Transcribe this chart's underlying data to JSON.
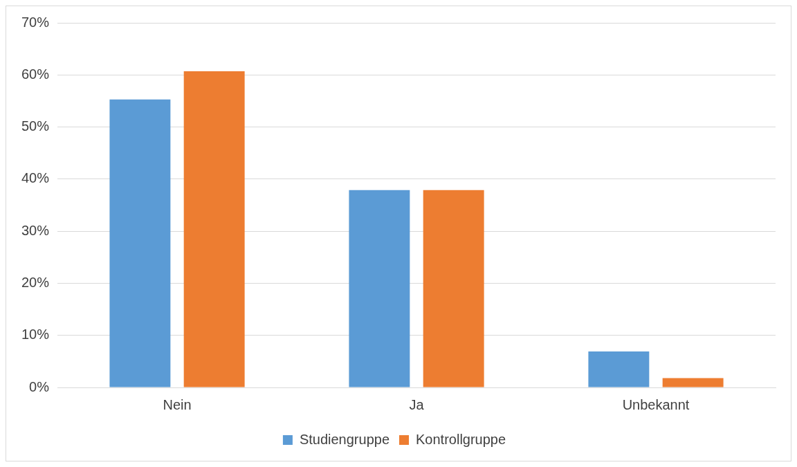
{
  "chart_data": {
    "type": "bar",
    "categories": [
      "Nein",
      "Ja",
      "Unbekannt"
    ],
    "series": [
      {
        "name": "Studiengruppe",
        "color": "#5b9bd5",
        "values": [
          55.3,
          37.9,
          6.9
        ]
      },
      {
        "name": "Kontrollgruppe",
        "color": "#ed7d31",
        "values": [
          60.7,
          37.9,
          1.8
        ]
      }
    ],
    "ylim": [
      0,
      70
    ],
    "yticks": [
      {
        "value": 0,
        "label": "0%"
      },
      {
        "value": 10,
        "label": "10%"
      },
      {
        "value": 20,
        "label": "20%"
      },
      {
        "value": 30,
        "label": "30%"
      },
      {
        "value": 40,
        "label": "40%"
      },
      {
        "value": 50,
        "label": "50%"
      },
      {
        "value": 60,
        "label": "60%"
      },
      {
        "value": 70,
        "label": "70%"
      }
    ],
    "grid": "y",
    "legend": "bottom"
  }
}
